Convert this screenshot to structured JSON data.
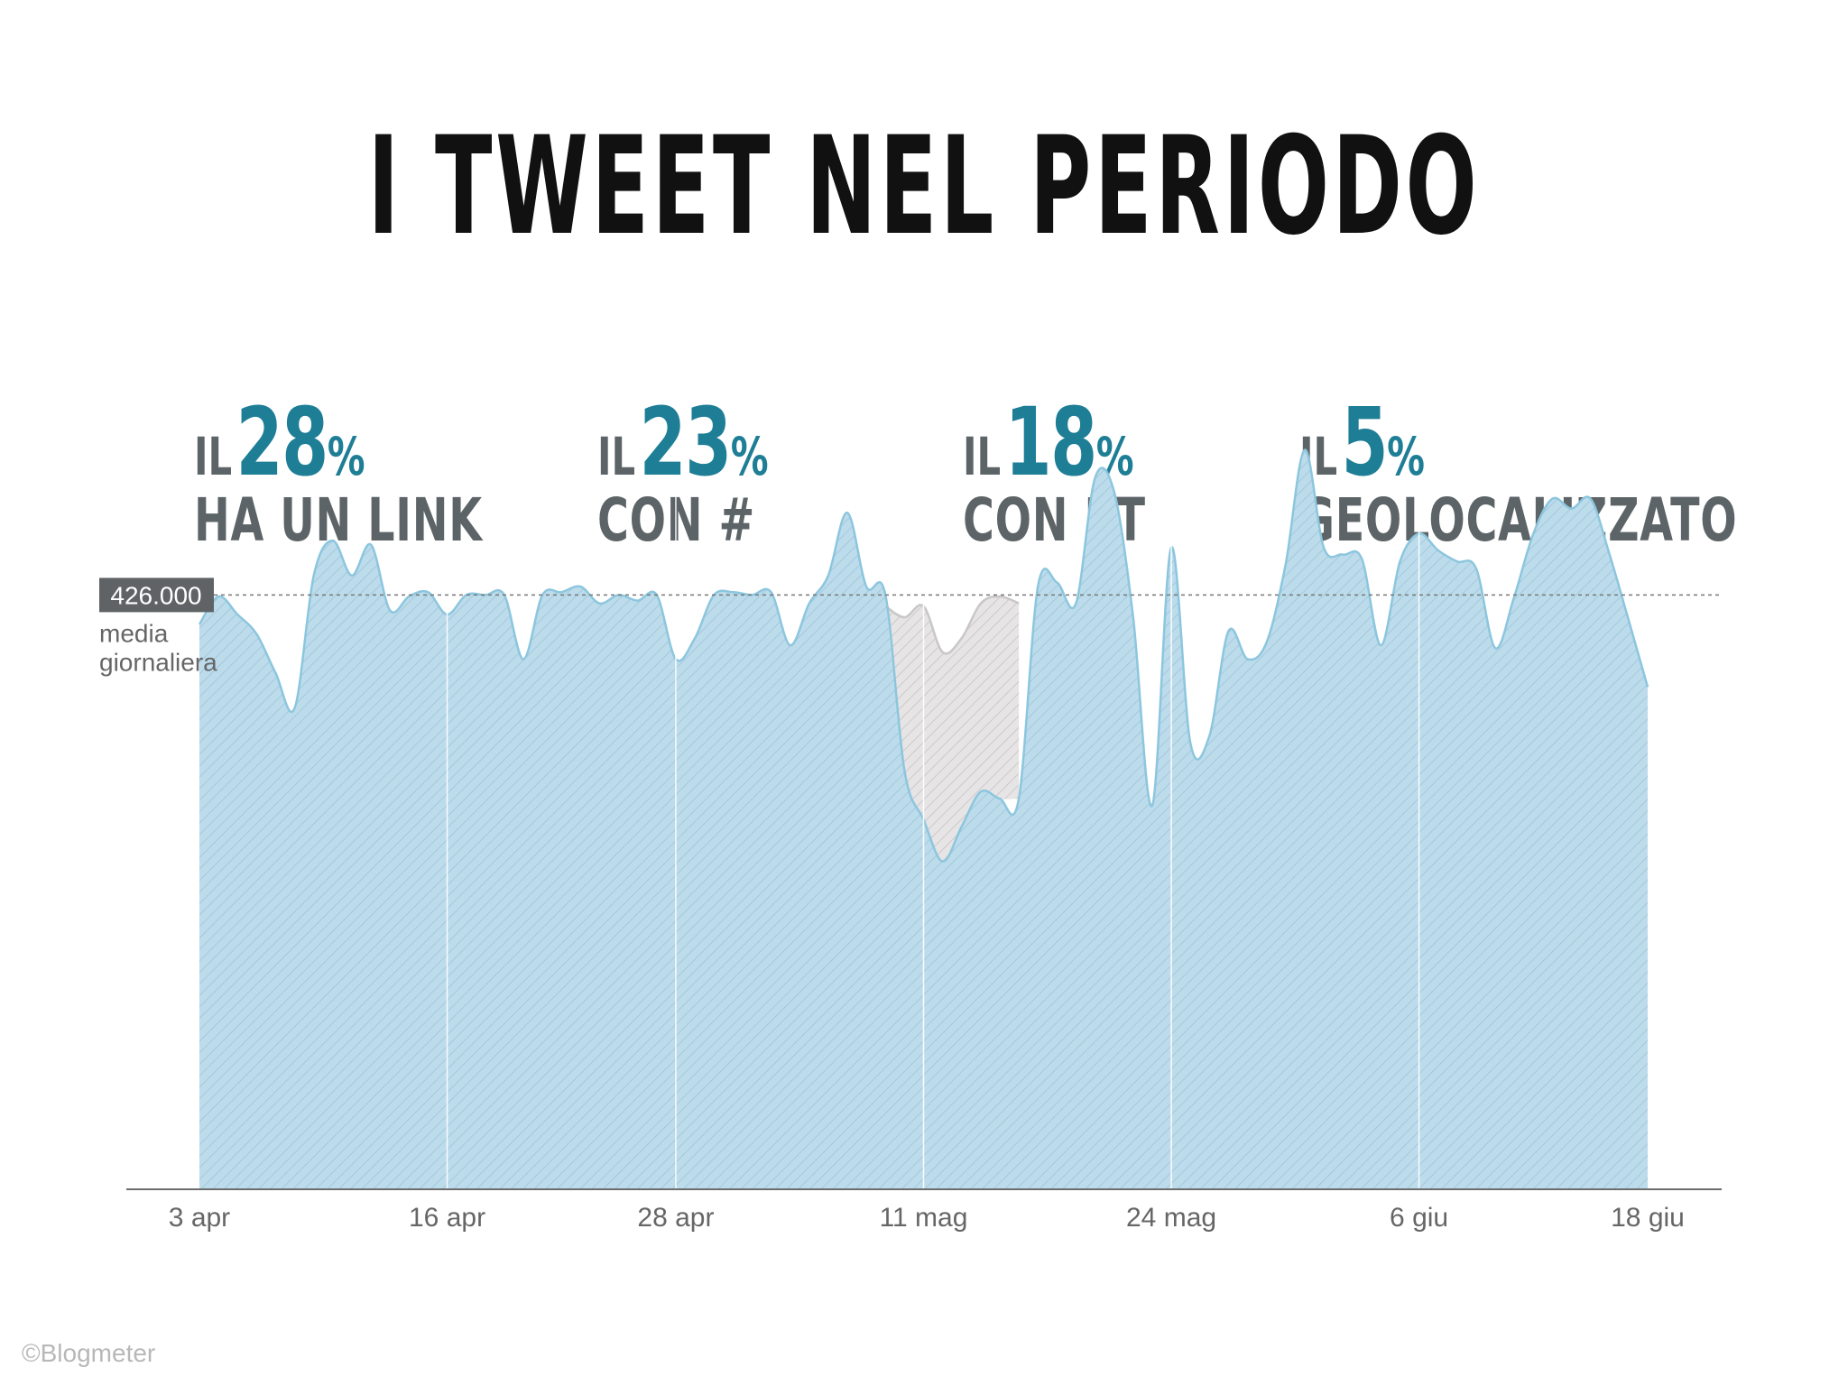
{
  "title": "I TWEET NEL PERIODO",
  "stats": [
    {
      "prefix": "IL",
      "value": "28",
      "unit": "%",
      "label": "HA UN LINK"
    },
    {
      "prefix": "IL",
      "value": "23",
      "unit": "%",
      "label": "CON #"
    },
    {
      "prefix": "IL",
      "value": "18",
      "unit": "%",
      "label": "CON RT"
    },
    {
      "prefix": "IL",
      "value": "5",
      "unit": "%",
      "label": "GEOLOCALIZZATO"
    }
  ],
  "credit": "©Blogmeter",
  "colors": {
    "title": "#111111",
    "accent": "#1e7e96",
    "label": "#5d6467",
    "area_fill": "#bcdcec",
    "area_stroke": "#8cc6de",
    "highlight_fill": "#e6e4e4",
    "highlight_stroke": "#c9c7c7",
    "reference_box": "#5f6366"
  },
  "chart_data": {
    "type": "area",
    "x_ticks": [
      "3 apr",
      "16 apr",
      "28 apr",
      "11 mag",
      "24 mag",
      "6 giu",
      "18 giu"
    ],
    "xlim": [
      "2013-04-03",
      "2013-06-18"
    ],
    "reference_line": {
      "value": 426000,
      "value_label": "426.000",
      "label_line1": "media",
      "label_line2": "giornaliera"
    },
    "ylim": [
      0,
      500000
    ],
    "y_axis_labels": false,
    "grid": "vertical lines at x ticks",
    "series": [
      {
        "x": [
          "2013-04-03",
          "2013-04-04",
          "2013-04-05",
          "2013-04-06",
          "2013-04-07",
          "2013-04-08",
          "2013-04-09",
          "2013-04-10",
          "2013-04-11",
          "2013-04-12",
          "2013-04-13",
          "2013-04-14",
          "2013-04-15",
          "2013-04-16",
          "2013-04-17",
          "2013-04-18",
          "2013-04-19",
          "2013-04-20",
          "2013-04-21",
          "2013-04-22",
          "2013-04-23",
          "2013-04-24",
          "2013-04-25",
          "2013-04-26",
          "2013-04-27",
          "2013-04-28",
          "2013-04-29",
          "2013-04-30",
          "2013-05-01",
          "2013-05-02",
          "2013-05-03",
          "2013-05-04",
          "2013-05-05",
          "2013-05-06",
          "2013-05-07",
          "2013-05-08",
          "2013-05-09",
          "2013-05-10",
          "2013-05-11",
          "2013-05-12",
          "2013-05-13",
          "2013-05-14",
          "2013-05-15",
          "2013-05-16",
          "2013-05-17",
          "2013-05-18",
          "2013-05-19",
          "2013-05-20",
          "2013-05-21",
          "2013-05-22",
          "2013-05-23",
          "2013-05-24",
          "2013-05-25",
          "2013-05-26",
          "2013-05-27",
          "2013-05-28",
          "2013-05-29",
          "2013-05-30",
          "2013-05-31",
          "2013-06-01",
          "2013-06-02",
          "2013-06-03",
          "2013-06-04",
          "2013-06-05",
          "2013-06-06",
          "2013-06-07",
          "2013-06-08",
          "2013-06-09",
          "2013-06-10",
          "2013-06-11",
          "2013-06-12",
          "2013-06-13",
          "2013-06-14",
          "2013-06-15",
          "2013-06-16",
          "2013-06-17",
          "2013-06-18"
        ],
        "values": [
          405000,
          425000,
          412000,
          398000,
          370000,
          345000,
          440000,
          465000,
          440000,
          462000,
          415000,
          425000,
          428000,
          412000,
          426000,
          426000,
          426000,
          380000,
          426000,
          428000,
          432000,
          420000,
          426000,
          422000,
          426000,
          380000,
          395000,
          426000,
          428000,
          426000,
          428000,
          390000,
          420000,
          440000,
          485000,
          432000,
          426000,
          300000,
          265000,
          235000,
          260000,
          285000,
          280000,
          280000,
          432000,
          435000,
          420000,
          510000,
          500000,
          410000,
          275000,
          460000,
          320000,
          325000,
          400000,
          380000,
          392000,
          448000,
          530000,
          460000,
          455000,
          452000,
          390000,
          450000,
          470000,
          458000,
          450000,
          445000,
          388000,
          425000,
          470000,
          495000,
          488000,
          495000,
          455000,
          408000,
          360000
        ]
      }
    ],
    "highlight": {
      "x_range": [
        "2013-05-09",
        "2013-05-16"
      ],
      "x": [
        "2013-05-09",
        "2013-05-10",
        "2013-05-11",
        "2013-05-12",
        "2013-05-13",
        "2013-05-14",
        "2013-05-15",
        "2013-05-16"
      ],
      "values": [
        418000,
        410000,
        418000,
        385000,
        395000,
        420000,
        425000,
        420000
      ]
    }
  }
}
